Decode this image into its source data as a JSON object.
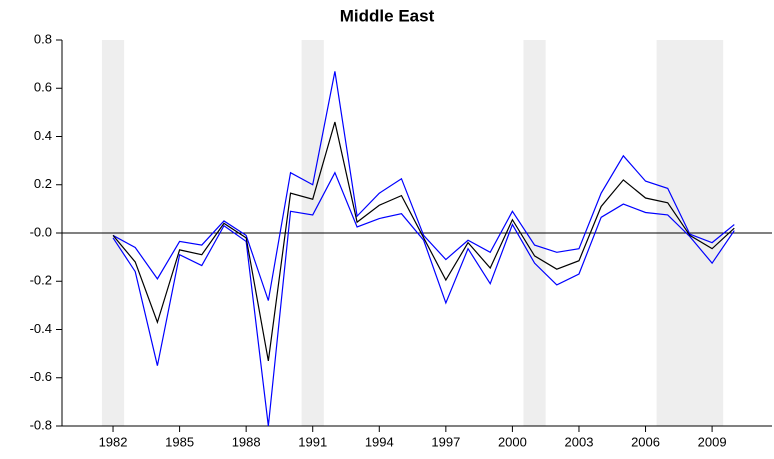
{
  "chart_data": {
    "type": "line",
    "title": "Middle East",
    "x": [
      1982,
      1983,
      1984,
      1985,
      1986,
      1987,
      1988,
      1989,
      1990,
      1991,
      1992,
      1993,
      1994,
      1995,
      1996,
      1997,
      1998,
      1999,
      2000,
      2001,
      2002,
      2003,
      2004,
      2005,
      2006,
      2007,
      2008,
      2009,
      2010
    ],
    "series": [
      {
        "color": "#0000ff",
        "values": [
          -0.01,
          -0.06,
          -0.19,
          -0.035,
          -0.05,
          0.05,
          -0.01,
          -0.28,
          0.25,
          0.2,
          0.67,
          0.07,
          0.165,
          0.225,
          -0.01,
          -0.11,
          -0.03,
          -0.08,
          0.09,
          -0.05,
          -0.08,
          -0.065,
          0.165,
          0.32,
          0.215,
          0.185,
          -0.005,
          -0.04,
          0.035
        ]
      },
      {
        "color": "#0000ff",
        "values": [
          -0.02,
          -0.16,
          -0.55,
          -0.09,
          -0.135,
          0.03,
          -0.035,
          -0.8,
          0.09,
          0.075,
          0.25,
          0.025,
          0.06,
          0.08,
          -0.03,
          -0.29,
          -0.065,
          -0.21,
          0.035,
          -0.125,
          -0.215,
          -0.17,
          0.065,
          0.12,
          0.085,
          0.075,
          -0.015,
          -0.125,
          0.01
        ]
      },
      {
        "color": "#000000",
        "values": [
          -0.01,
          -0.12,
          -0.37,
          -0.07,
          -0.09,
          0.04,
          -0.02,
          -0.53,
          0.165,
          0.14,
          0.46,
          0.045,
          0.115,
          0.155,
          -0.02,
          -0.195,
          -0.04,
          -0.145,
          0.055,
          -0.095,
          -0.15,
          -0.115,
          0.11,
          0.22,
          0.145,
          0.125,
          -0.01,
          -0.065,
          0.02
        ]
      }
    ],
    "shaded_regions": [
      [
        1981.5,
        1982.5
      ],
      [
        1990.5,
        1991.5
      ],
      [
        2000.5,
        2001.5
      ],
      [
        2006.5,
        2009.5
      ]
    ],
    "shade_color": "#eeeeee",
    "xlim": [
      1979.7,
      2011.7
    ],
    "xticks": [
      1982,
      1985,
      1988,
      1991,
      1994,
      1997,
      2000,
      2003,
      2006,
      2009
    ],
    "ylim": [
      -0.8,
      0.8
    ],
    "yticks": [
      -0.8,
      -0.6,
      -0.4,
      -0.2,
      {
        "value": 0,
        "label": "-0.0"
      },
      0.2,
      0.4,
      0.6,
      0.8
    ]
  }
}
